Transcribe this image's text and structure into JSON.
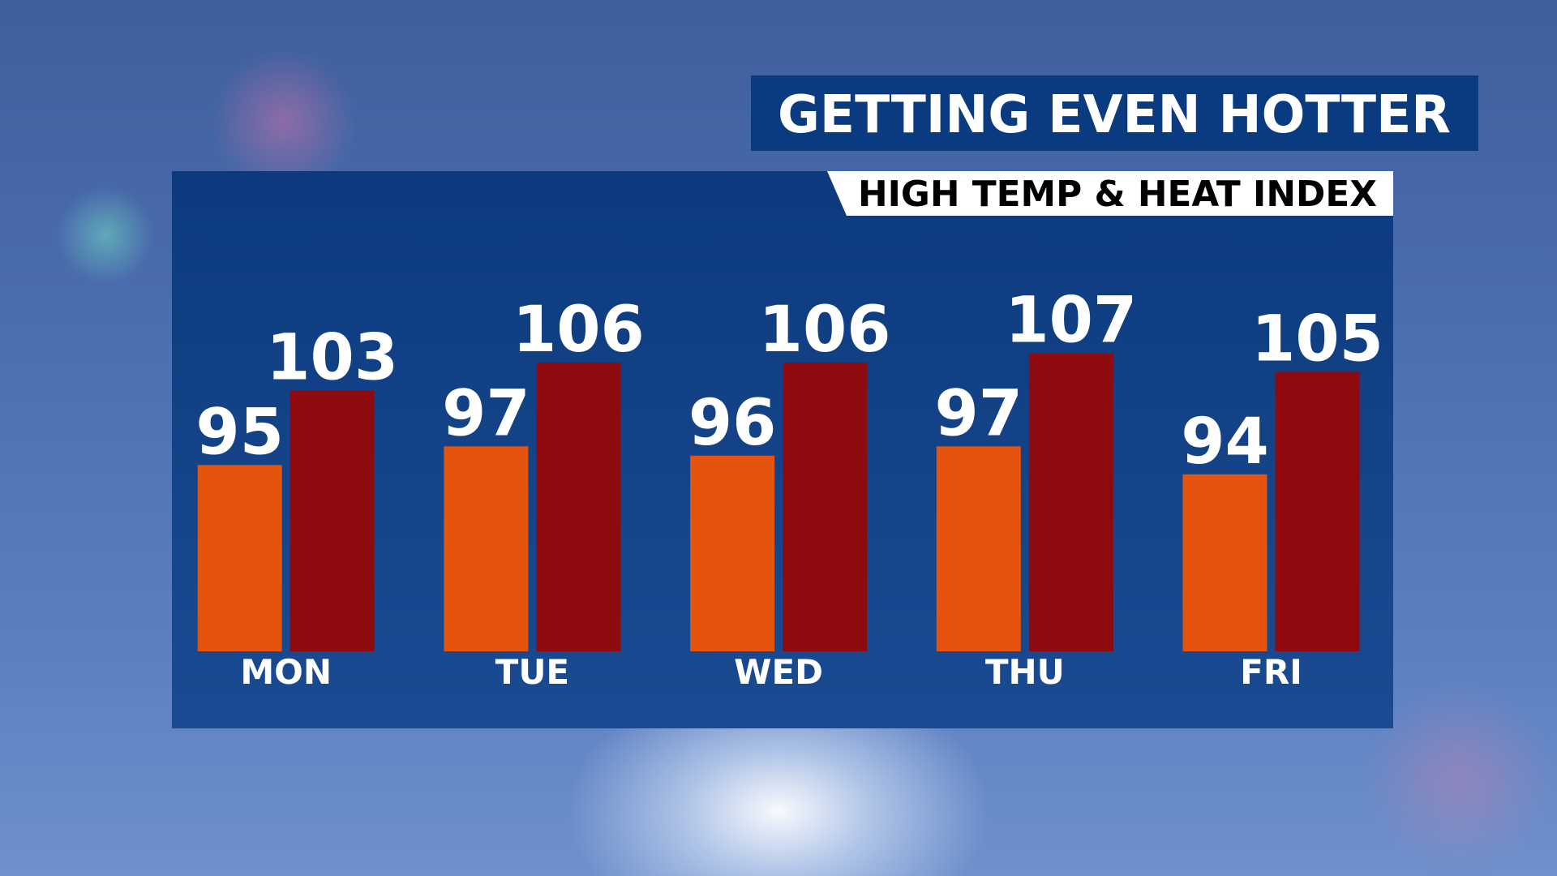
{
  "chart_data": {
    "type": "bar",
    "title": "GETTING EVEN HOTTER",
    "subtitle": "HIGH TEMP & HEAT INDEX",
    "categories": [
      "MON",
      "TUE",
      "WED",
      "THU",
      "FRI"
    ],
    "series": [
      {
        "color": "#e5530e",
        "values": [
          95,
          97,
          96,
          97,
          94
        ]
      },
      {
        "color": "#8f0a0e",
        "values": [
          103,
          106,
          106,
          107,
          105
        ]
      }
    ],
    "ylim": [
      75,
      110
    ]
  }
}
